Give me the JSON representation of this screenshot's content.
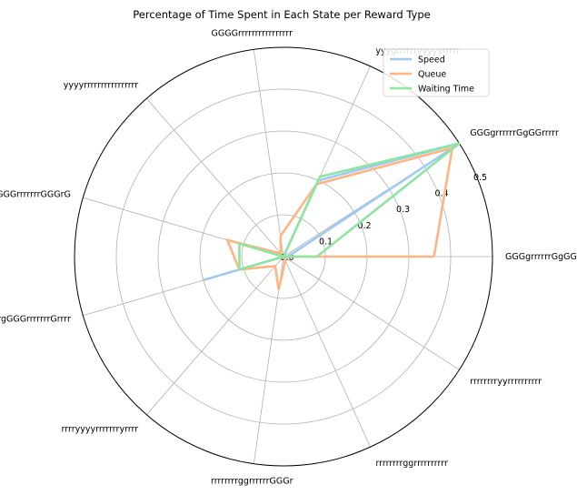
{
  "chart_data": {
    "type": "radar",
    "title": "Percentage of Time Spent in Each State per Reward Type",
    "categories": [
      "GGGgrrrrrrGgGGrrrGG",
      "GGGgrrrrrrGgGGrrrrr",
      "yyygrrrrrryyyyyrrrrr",
      "GGGGrrrrrrrrrrrrrrrr",
      "yyyyrrrrrrrrrrrrrrrr",
      "rrrrgGGGrrrrrrrGGGrG",
      "rrrrgGGGrrrrrrrGrrrr",
      "rrrryyyyrrrrrrryrrrr",
      "rrrrrrrrggrrrrrrGGGr",
      "rrrrrrrrggrrrrrrrrrr",
      "rrrrrrrryyrrrrrrrrrr"
    ],
    "r_ticks": [
      "0.0",
      "0.1",
      "0.2",
      "0.3",
      "0.4",
      "0.5"
    ],
    "r_range": [
      0,
      0.5
    ],
    "grid": true,
    "legend_position": "top-right",
    "series": [
      {
        "name": "Speed",
        "color": "#a1c9f4",
        "values": [
          0.01,
          0.5,
          0.2,
          0.0,
          0.0,
          0.0,
          0.2,
          0.0,
          0.0,
          0.0,
          0.0
        ]
      },
      {
        "name": "Queue",
        "color": "#ffb482",
        "values": [
          0.36,
          0.48,
          0.19,
          0.05,
          0.01,
          0.14,
          0.11,
          0.03,
          0.08,
          0.01,
          0.0
        ]
      },
      {
        "name": "Waiting Time",
        "color": "#8de5a1",
        "values": [
          0.08,
          0.5,
          0.21,
          0.0,
          0.0,
          0.11,
          0.11,
          0.0,
          0.0,
          0.0,
          0.0
        ]
      }
    ]
  }
}
